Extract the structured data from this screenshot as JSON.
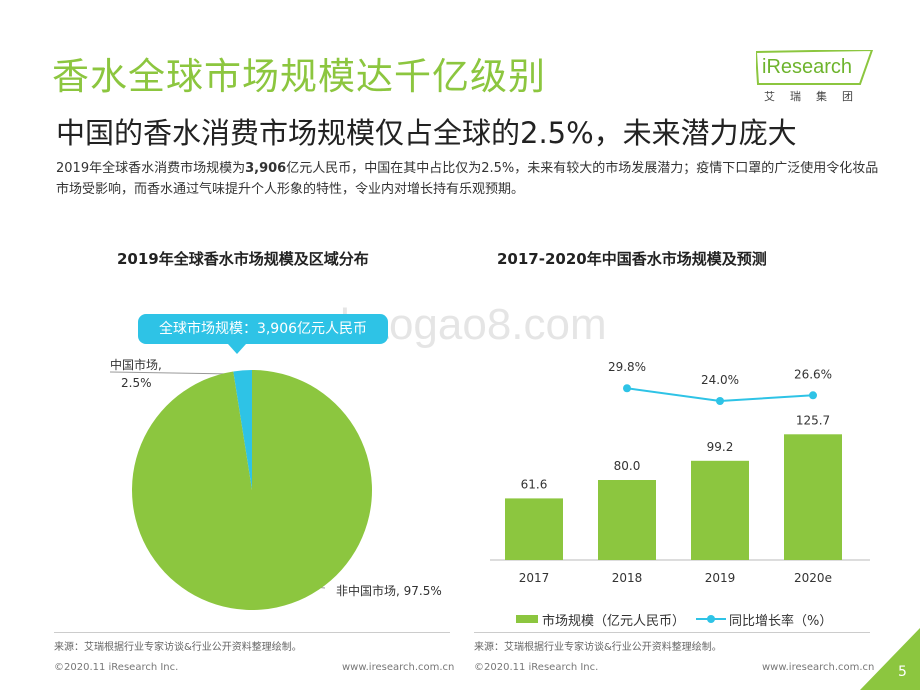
{
  "header": {
    "title": "香水全球市场规模达千亿级别",
    "subtitle": "中国的香水消费市场规模仅占全球的2.5%，未来潜力庞大",
    "desc_pre": "2019年全球香水消费市场规模为",
    "desc_bold": "3,906",
    "desc_post": "亿元人民币，中国在其中占比仅为2.5%，未来有较大的市场发展潜力；疫情下口罩的广泛使用令化妆品市场受影响，而香水通过气味提升个人形象的特性，令业内对增长持有乐观预期。"
  },
  "logo": {
    "brand": "iResearch",
    "sub": "艾瑞集团"
  },
  "watermark": "baogao8.com",
  "colors": {
    "green": "#8cc63f",
    "cyan": "#2ec3e6",
    "bar": "#8cc63f"
  },
  "chart_data": [
    {
      "type": "pie",
      "title": "2019年全球香水市场规模及区域分布",
      "callout": "全球市场规模：3,906亿元人民币",
      "slices": [
        {
          "label": "中国市场,",
          "pct_label": "2.5%",
          "value": 2.5,
          "color": "#2ec3e6"
        },
        {
          "label": "非中国市场, 97.5%",
          "value": 97.5,
          "color": "#8cc63f"
        }
      ]
    },
    {
      "type": "bar",
      "title": "2017-2020年中国香水市场规模及预测",
      "categories": [
        "2017",
        "2018",
        "2019",
        "2020e"
      ],
      "series": [
        {
          "name": "市场规模（亿元人民币）",
          "type": "bar",
          "values": [
            61.6,
            80.0,
            99.2,
            125.7
          ],
          "labels": [
            "61.6",
            "80.0",
            "99.2",
            "125.7"
          ],
          "color": "#8cc63f"
        },
        {
          "name": "同比增长率（%）",
          "type": "line",
          "values": [
            null,
            29.8,
            24.0,
            26.6
          ],
          "labels": [
            "",
            "29.8%",
            "24.0%",
            "26.6%"
          ],
          "color": "#2ec3e6"
        }
      ],
      "ylim": [
        0,
        140
      ]
    }
  ],
  "sources": {
    "left": "来源：艾瑞根据行业专家访谈&行业公开资料整理绘制。",
    "right": "来源：艾瑞根据行业专家访谈&行业公开资料整理绘制。"
  },
  "footer": {
    "copyright_left": "©2020.11 iResearch Inc.",
    "url_left": "www.iresearch.com.cn",
    "copyright_right": "©2020.11 iResearch Inc.",
    "url_right": "www.iresearch.com.cn",
    "page": "5"
  }
}
